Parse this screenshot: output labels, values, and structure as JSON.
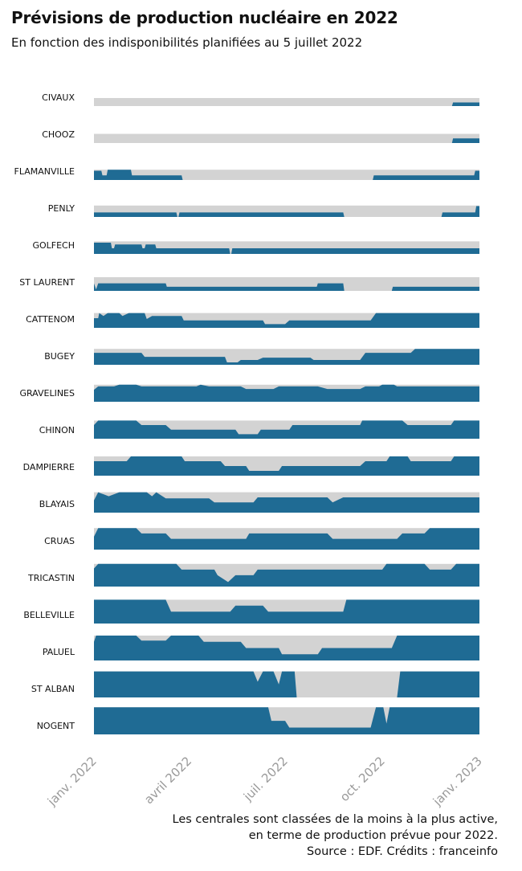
{
  "title": "Prévisions de production nucléaire en 2022",
  "subtitle": "En fonction des indisponibilités planifiées au 5 juillet 2022",
  "footer": [
    "Les centrales sont classées de la moins à la plus active,",
    "en terme de production prévue pour 2022.",
    "Source : EDF. Crédits : franceinfo"
  ],
  "colors": {
    "production": "#1f6b94",
    "capacity": "#d3d3d3",
    "axis_text": "#9a9a9a"
  },
  "chart_data": {
    "type": "area",
    "x_domain": [
      "2022-01-01",
      "2023-01-01"
    ],
    "x_ticks": [
      "janv. 2022",
      "avril 2022",
      "juil. 2022",
      "oct. 2022",
      "janv. 2023"
    ],
    "x_tick_dates": [
      "2022-01-01",
      "2022-04-01",
      "2022-07-01",
      "2022-10-01",
      "2023-01-01"
    ],
    "series": [
      {
        "name": "CIVAUX",
        "capacity": 1,
        "points": [
          [
            "2022-01-01",
            0
          ],
          [
            "2022-12-06",
            0
          ],
          [
            "2022-12-07",
            0.45
          ],
          [
            "2023-01-01",
            0.45
          ]
        ]
      },
      {
        "name": "CHOOZ",
        "capacity": 1,
        "points": [
          [
            "2022-01-01",
            0
          ],
          [
            "2022-12-06",
            0
          ],
          [
            "2022-12-07",
            0.5
          ],
          [
            "2023-01-01",
            0.5
          ]
        ]
      },
      {
        "name": "FLAMANVILLE",
        "capacity": 1,
        "points": [
          [
            "2022-01-01",
            0.9
          ],
          [
            "2022-01-08",
            0.9
          ],
          [
            "2022-01-09",
            0.45
          ],
          [
            "2022-01-13",
            0.45
          ],
          [
            "2022-01-14",
            1
          ],
          [
            "2022-02-05",
            1
          ],
          [
            "2022-02-06",
            0.45
          ],
          [
            "2022-03-25",
            0.45
          ],
          [
            "2022-03-26",
            0
          ],
          [
            "2022-09-22",
            0
          ],
          [
            "2022-09-23",
            0.45
          ],
          [
            "2022-12-27",
            0.45
          ],
          [
            "2022-12-28",
            0.9
          ],
          [
            "2023-01-01",
            0.9
          ]
        ]
      },
      {
        "name": "PENLY",
        "capacity": 1,
        "points": [
          [
            "2022-01-01",
            0.4
          ],
          [
            "2022-03-20",
            0.4
          ],
          [
            "2022-03-21",
            0
          ],
          [
            "2022-03-22",
            0
          ],
          [
            "2022-03-23",
            0.4
          ],
          [
            "2022-08-25",
            0.4
          ],
          [
            "2022-08-26",
            0
          ],
          [
            "2022-11-26",
            0
          ],
          [
            "2022-11-27",
            0.4
          ],
          [
            "2022-12-28",
            0.4
          ],
          [
            "2022-12-29",
            0.95
          ],
          [
            "2023-01-01",
            0.95
          ]
        ]
      },
      {
        "name": "GOLFECH",
        "capacity": 1,
        "points": [
          [
            "2022-01-01",
            0.9
          ],
          [
            "2022-01-17",
            0.9
          ],
          [
            "2022-01-18",
            0.45
          ],
          [
            "2022-01-20",
            0.45
          ],
          [
            "2022-01-21",
            0.75
          ],
          [
            "2022-02-15",
            0.75
          ],
          [
            "2022-02-16",
            0.45
          ],
          [
            "2022-02-18",
            0.45
          ],
          [
            "2022-02-19",
            0.75
          ],
          [
            "2022-02-28",
            0.75
          ],
          [
            "2022-03-01",
            0.45
          ],
          [
            "2022-05-09",
            0.45
          ],
          [
            "2022-05-10",
            0
          ],
          [
            "2022-05-11",
            0
          ],
          [
            "2022-05-12",
            0.45
          ],
          [
            "2023-01-01",
            0.45
          ]
        ]
      },
      {
        "name": "ST LAURENT",
        "capacity": 1,
        "points": [
          [
            "2022-01-01",
            0.55
          ],
          [
            "2022-01-03",
            0.1
          ],
          [
            "2022-01-05",
            0.55
          ],
          [
            "2022-03-10",
            0.55
          ],
          [
            "2022-03-11",
            0.3
          ],
          [
            "2022-07-31",
            0.3
          ],
          [
            "2022-08-01",
            0.55
          ],
          [
            "2022-08-25",
            0.55
          ],
          [
            "2022-08-26",
            0
          ],
          [
            "2022-10-10",
            0
          ],
          [
            "2022-10-11",
            0.3
          ],
          [
            "2023-01-01",
            0.3
          ]
        ]
      },
      {
        "name": "CATTENOM",
        "capacity": 1,
        "points": [
          [
            "2022-01-01",
            0.65
          ],
          [
            "2022-01-05",
            0.65
          ],
          [
            "2022-01-06",
            1
          ],
          [
            "2022-01-10",
            0.8
          ],
          [
            "2022-01-14",
            1
          ],
          [
            "2022-01-25",
            1
          ],
          [
            "2022-01-28",
            0.8
          ],
          [
            "2022-02-03",
            1
          ],
          [
            "2022-02-18",
            1
          ],
          [
            "2022-02-20",
            0.6
          ],
          [
            "2022-02-25",
            0.8
          ],
          [
            "2022-03-25",
            0.8
          ],
          [
            "2022-03-27",
            0.5
          ],
          [
            "2022-06-10",
            0.5
          ],
          [
            "2022-06-12",
            0.25
          ],
          [
            "2022-07-01",
            0.25
          ],
          [
            "2022-07-05",
            0.5
          ],
          [
            "2022-09-20",
            0.5
          ],
          [
            "2022-09-25",
            1
          ],
          [
            "2023-01-01",
            1
          ]
        ]
      },
      {
        "name": "BUGEY",
        "capacity": 1,
        "points": [
          [
            "2022-01-01",
            0.75
          ],
          [
            "2022-02-15",
            0.75
          ],
          [
            "2022-02-18",
            0.5
          ],
          [
            "2022-05-05",
            0.5
          ],
          [
            "2022-05-07",
            0.15
          ],
          [
            "2022-05-17",
            0.15
          ],
          [
            "2022-05-20",
            0.3
          ],
          [
            "2022-06-05",
            0.3
          ],
          [
            "2022-06-10",
            0.45
          ],
          [
            "2022-07-25",
            0.45
          ],
          [
            "2022-07-28",
            0.3
          ],
          [
            "2022-09-10",
            0.3
          ],
          [
            "2022-09-15",
            0.75
          ],
          [
            "2022-10-28",
            0.75
          ],
          [
            "2022-11-01",
            1
          ],
          [
            "2023-01-01",
            1
          ]
        ]
      },
      {
        "name": "GRAVELINES",
        "capacity": 1,
        "points": [
          [
            "2022-01-01",
            0.7
          ],
          [
            "2022-01-05",
            0.9
          ],
          [
            "2022-01-20",
            0.9
          ],
          [
            "2022-01-25",
            1
          ],
          [
            "2022-02-10",
            1
          ],
          [
            "2022-02-15",
            0.9
          ],
          [
            "2022-04-08",
            0.9
          ],
          [
            "2022-04-12",
            1
          ],
          [
            "2022-04-20",
            0.9
          ],
          [
            "2022-05-20",
            0.9
          ],
          [
            "2022-05-25",
            0.75
          ],
          [
            "2022-06-20",
            0.75
          ],
          [
            "2022-06-25",
            0.9
          ],
          [
            "2022-08-01",
            0.9
          ],
          [
            "2022-08-10",
            0.75
          ],
          [
            "2022-09-10",
            0.75
          ],
          [
            "2022-09-15",
            0.9
          ],
          [
            "2022-09-28",
            0.9
          ],
          [
            "2022-10-01",
            1
          ],
          [
            "2022-10-12",
            1
          ],
          [
            "2022-10-15",
            0.9
          ],
          [
            "2023-01-01",
            0.9
          ]
        ]
      },
      {
        "name": "CHINON",
        "capacity": 1,
        "points": [
          [
            "2022-01-01",
            0.75
          ],
          [
            "2022-01-05",
            1
          ],
          [
            "2022-02-10",
            1
          ],
          [
            "2022-02-15",
            0.75
          ],
          [
            "2022-03-10",
            0.75
          ],
          [
            "2022-03-15",
            0.5
          ],
          [
            "2022-05-15",
            0.5
          ],
          [
            "2022-05-18",
            0.25
          ],
          [
            "2022-06-05",
            0.25
          ],
          [
            "2022-06-08",
            0.5
          ],
          [
            "2022-07-05",
            0.5
          ],
          [
            "2022-07-08",
            0.75
          ],
          [
            "2022-09-10",
            0.75
          ],
          [
            "2022-09-12",
            1
          ],
          [
            "2022-10-20",
            1
          ],
          [
            "2022-10-25",
            0.75
          ],
          [
            "2022-12-05",
            0.75
          ],
          [
            "2022-12-08",
            1
          ],
          [
            "2023-01-01",
            1
          ]
        ]
      },
      {
        "name": "DAMPIERRE",
        "capacity": 1,
        "points": [
          [
            "2022-01-01",
            0.75
          ],
          [
            "2022-02-01",
            0.75
          ],
          [
            "2022-02-05",
            1
          ],
          [
            "2022-03-25",
            1
          ],
          [
            "2022-03-28",
            0.75
          ],
          [
            "2022-05-01",
            0.75
          ],
          [
            "2022-05-05",
            0.5
          ],
          [
            "2022-05-25",
            0.5
          ],
          [
            "2022-05-28",
            0.25
          ],
          [
            "2022-06-25",
            0.25
          ],
          [
            "2022-06-28",
            0.5
          ],
          [
            "2022-09-10",
            0.5
          ],
          [
            "2022-09-15",
            0.75
          ],
          [
            "2022-10-05",
            0.75
          ],
          [
            "2022-10-08",
            1
          ],
          [
            "2022-10-25",
            1
          ],
          [
            "2022-10-28",
            0.75
          ],
          [
            "2022-12-05",
            0.75
          ],
          [
            "2022-12-08",
            1
          ],
          [
            "2023-01-01",
            1
          ]
        ]
      },
      {
        "name": "BLAYAIS",
        "capacity": 1,
        "points": [
          [
            "2022-01-01",
            0.6
          ],
          [
            "2022-01-05",
            1
          ],
          [
            "2022-01-15",
            0.8
          ],
          [
            "2022-01-25",
            1
          ],
          [
            "2022-02-20",
            1
          ],
          [
            "2022-02-25",
            0.8
          ],
          [
            "2022-03-01",
            1
          ],
          [
            "2022-03-10",
            0.7
          ],
          [
            "2022-04-20",
            0.7
          ],
          [
            "2022-04-25",
            0.5
          ],
          [
            "2022-06-01",
            0.5
          ],
          [
            "2022-06-05",
            0.75
          ],
          [
            "2022-08-10",
            0.75
          ],
          [
            "2022-08-15",
            0.5
          ],
          [
            "2022-08-25",
            0.75
          ],
          [
            "2023-01-01",
            0.75
          ]
        ]
      },
      {
        "name": "CRUAS",
        "capacity": 1,
        "points": [
          [
            "2022-01-01",
            0.6
          ],
          [
            "2022-01-05",
            1
          ],
          [
            "2022-02-10",
            1
          ],
          [
            "2022-02-15",
            0.75
          ],
          [
            "2022-03-10",
            0.75
          ],
          [
            "2022-03-15",
            0.5
          ],
          [
            "2022-05-25",
            0.5
          ],
          [
            "2022-05-28",
            0.75
          ],
          [
            "2022-08-10",
            0.75
          ],
          [
            "2022-08-15",
            0.5
          ],
          [
            "2022-10-15",
            0.5
          ],
          [
            "2022-10-20",
            0.75
          ],
          [
            "2022-11-10",
            0.75
          ],
          [
            "2022-11-15",
            1
          ],
          [
            "2023-01-01",
            1
          ]
        ]
      },
      {
        "name": "TRICASTIN",
        "capacity": 1,
        "points": [
          [
            "2022-01-01",
            0.8
          ],
          [
            "2022-01-05",
            1
          ],
          [
            "2022-03-20",
            1
          ],
          [
            "2022-03-25",
            0.75
          ],
          [
            "2022-04-25",
            0.75
          ],
          [
            "2022-04-28",
            0.5
          ],
          [
            "2022-05-08",
            0.2
          ],
          [
            "2022-05-15",
            0.5
          ],
          [
            "2022-06-01",
            0.5
          ],
          [
            "2022-06-05",
            0.75
          ],
          [
            "2022-10-01",
            0.75
          ],
          [
            "2022-10-05",
            1
          ],
          [
            "2022-11-10",
            1
          ],
          [
            "2022-11-15",
            0.75
          ],
          [
            "2022-12-05",
            0.75
          ],
          [
            "2022-12-10",
            1
          ],
          [
            "2023-01-01",
            1
          ]
        ]
      },
      {
        "name": "BELLEVILLE",
        "capacity": 1,
        "points": [
          [
            "2022-01-01",
            1
          ],
          [
            "2022-03-10",
            1
          ],
          [
            "2022-03-15",
            0.5
          ],
          [
            "2022-05-10",
            0.5
          ],
          [
            "2022-05-15",
            0.75
          ],
          [
            "2022-06-10",
            0.75
          ],
          [
            "2022-06-15",
            0.5
          ],
          [
            "2022-08-25",
            0.5
          ],
          [
            "2022-08-28",
            1
          ],
          [
            "2023-01-01",
            1
          ]
        ]
      },
      {
        "name": "PALUEL",
        "capacity": 1,
        "points": [
          [
            "2022-01-01",
            0.75
          ],
          [
            "2022-01-03",
            1
          ],
          [
            "2022-02-10",
            1
          ],
          [
            "2022-02-15",
            0.8
          ],
          [
            "2022-03-10",
            0.8
          ],
          [
            "2022-03-15",
            1
          ],
          [
            "2022-04-10",
            1
          ],
          [
            "2022-04-15",
            0.75
          ],
          [
            "2022-05-20",
            0.75
          ],
          [
            "2022-05-25",
            0.5
          ],
          [
            "2022-06-25",
            0.5
          ],
          [
            "2022-06-28",
            0.25
          ],
          [
            "2022-08-01",
            0.25
          ],
          [
            "2022-08-05",
            0.5
          ],
          [
            "2022-10-10",
            0.5
          ],
          [
            "2022-10-15",
            1
          ],
          [
            "2023-01-01",
            1
          ]
        ]
      },
      {
        "name": "ST ALBAN",
        "capacity": 1,
        "points": [
          [
            "2022-01-01",
            1
          ],
          [
            "2022-06-01",
            1
          ],
          [
            "2022-06-05",
            0.6
          ],
          [
            "2022-06-10",
            1
          ],
          [
            "2022-06-20",
            1
          ],
          [
            "2022-06-25",
            0.5
          ],
          [
            "2022-06-28",
            1
          ],
          [
            "2022-07-10",
            1
          ],
          [
            "2022-07-12",
            0
          ],
          [
            "2022-10-15",
            0
          ],
          [
            "2022-10-18",
            1
          ],
          [
            "2023-01-01",
            1
          ]
        ]
      },
      {
        "name": "NOGENT",
        "capacity": 1,
        "points": [
          [
            "2022-01-01",
            1
          ],
          [
            "2022-06-15",
            1
          ],
          [
            "2022-06-18",
            0.5
          ],
          [
            "2022-07-01",
            0.5
          ],
          [
            "2022-07-05",
            0.25
          ],
          [
            "2022-09-20",
            0.25
          ],
          [
            "2022-09-25",
            1
          ],
          [
            "2022-10-02",
            1
          ],
          [
            "2022-10-05",
            0.4
          ],
          [
            "2022-10-08",
            1
          ],
          [
            "2023-01-01",
            1
          ]
        ]
      }
    ]
  }
}
